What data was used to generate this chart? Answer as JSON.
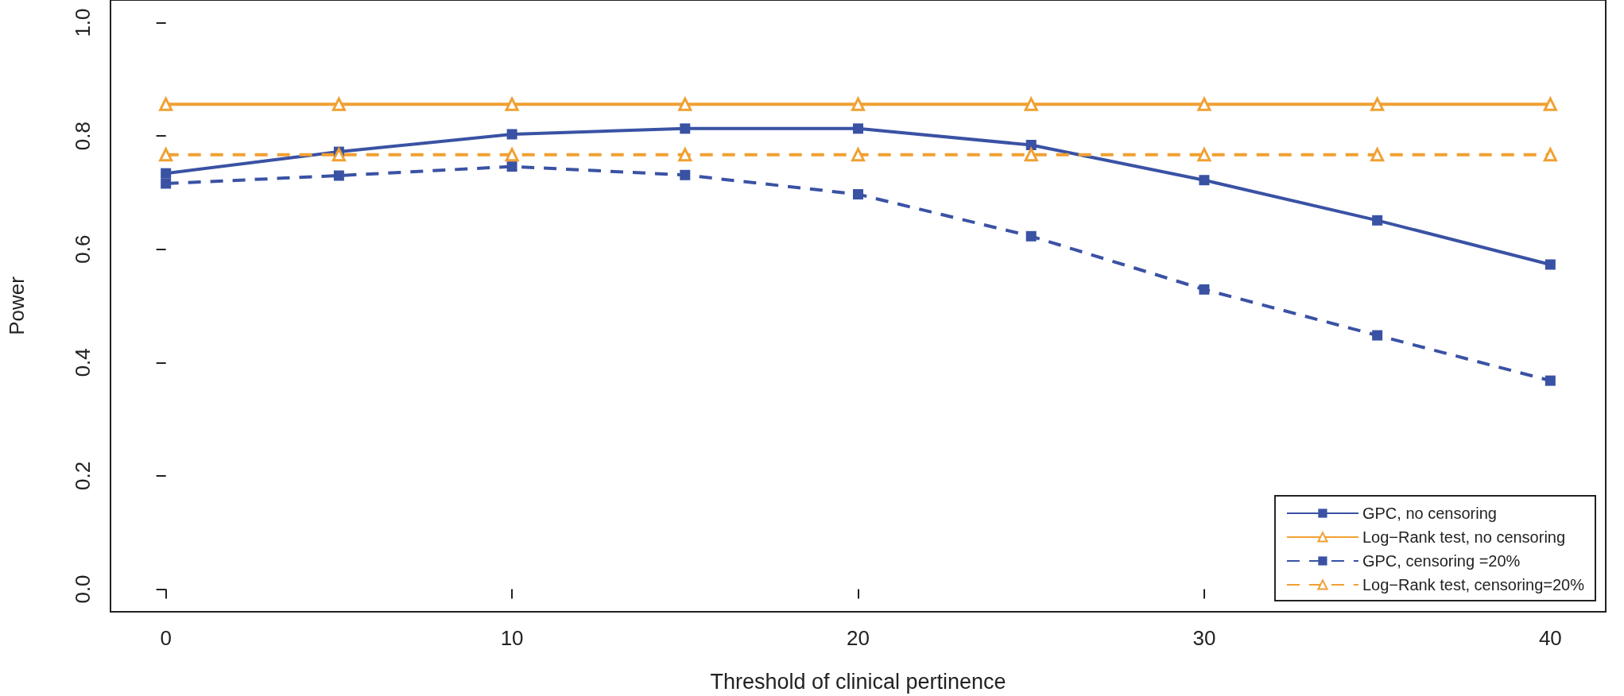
{
  "chart_data": {
    "type": "line",
    "xlabel": "Threshold of clinical pertinence",
    "ylabel": "Power",
    "x": [
      0,
      5,
      10,
      15,
      20,
      25,
      30,
      35,
      40
    ],
    "series": [
      {
        "name": "GPC, no censoring",
        "color": "#3a52a4",
        "marker": "square",
        "line_style": "solid",
        "values": [
          0.734,
          0.772,
          0.803,
          0.813,
          0.813,
          0.784,
          0.722,
          0.651,
          0.573
        ]
      },
      {
        "name": "Log−Rank test, no censoring",
        "color": "#f0a032",
        "marker": "triangle",
        "line_style": "solid",
        "values": [
          0.856,
          0.856,
          0.856,
          0.856,
          0.856,
          0.856,
          0.856,
          0.856,
          0.856
        ]
      },
      {
        "name": "GPC, censoring =20%",
        "color": "#3a52a4",
        "marker": "square",
        "line_style": "dashed",
        "values": [
          0.716,
          0.73,
          0.746,
          0.731,
          0.697,
          0.623,
          0.529,
          0.448,
          0.368
        ]
      },
      {
        "name": "Log−Rank test, censoring=20%",
        "color": "#f0a032",
        "marker": "triangle",
        "line_style": "dashed",
        "values": [
          0.767,
          0.767,
          0.767,
          0.767,
          0.767,
          0.767,
          0.767,
          0.767,
          0.767
        ]
      }
    ],
    "xlim": [
      -1.6,
      41.6
    ],
    "xticks": [
      0,
      10,
      20,
      30,
      40
    ],
    "ylim": [
      -0.04,
      1.04
    ],
    "yticks": [
      {
        "value": 0,
        "label": "0.0"
      },
      0.2,
      0.4,
      0.6,
      0.8,
      {
        "value": 1,
        "label": "1.0"
      }
    ],
    "grid": false,
    "legend": "bottom right"
  }
}
